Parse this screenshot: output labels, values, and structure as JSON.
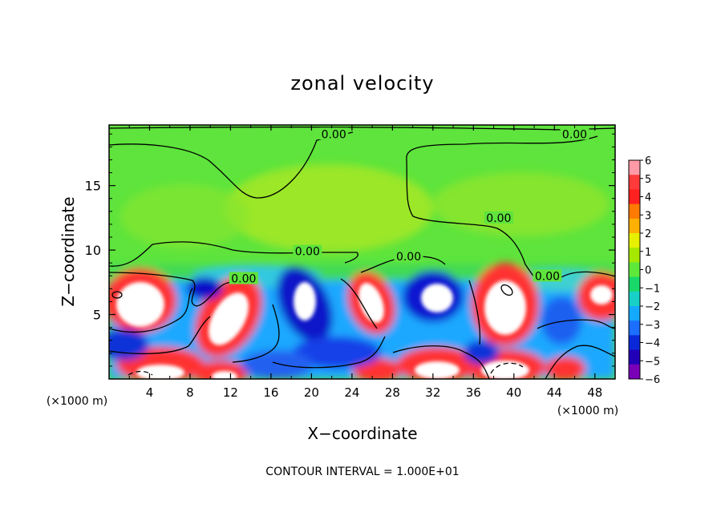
{
  "chart_data": {
    "type": "heatmap",
    "title": "zonal velocity",
    "xlabel": "X−coordinate",
    "ylabel": "Z−coordinate",
    "x_unit_left": "(×1000 m)",
    "x_unit_right": "(×1000 m)",
    "footer": "CONTOUR INTERVAL = 1.000E+01",
    "xlim": [
      0,
      50
    ],
    "ylim": [
      0,
      19.7
    ],
    "x_ticks": [
      4,
      8,
      12,
      16,
      20,
      24,
      28,
      32,
      36,
      40,
      44,
      48
    ],
    "x_tick_labels": [
      "4",
      "8",
      "12",
      "16",
      "20",
      "24",
      "28",
      "32",
      "36",
      "40",
      "44",
      "48"
    ],
    "y_ticks": [
      5,
      10,
      15
    ],
    "y_tick_labels": [
      "5",
      "10",
      "15"
    ],
    "colorbar": {
      "min": -6,
      "max": 6,
      "tick_labels": [
        "6",
        "5",
        "4",
        "3",
        "2",
        "1",
        "0",
        "−1",
        "−2",
        "−3",
        "−4",
        "−5",
        "−6"
      ],
      "colors": [
        "#ff9aa6",
        "#ff3a3a",
        "#ff2020",
        "#ff7a00",
        "#ffb000",
        "#e6f000",
        "#a6e800",
        "#5ee83a",
        "#18d86a",
        "#18d0c8",
        "#14a8ff",
        "#1c6eff",
        "#0a28d8",
        "#2200b8",
        "#7a00b8"
      ]
    },
    "contour_labels": [
      {
        "text": "0.00",
        "x": 22.2,
        "z": 19.0
      },
      {
        "text": "0.00",
        "x": 46.0,
        "z": 19.0
      },
      {
        "text": "0.00",
        "x": 38.5,
        "z": 12.5
      },
      {
        "text": "0.00",
        "x": 19.6,
        "z": 9.9
      },
      {
        "text": "0.00",
        "x": 29.6,
        "z": 9.5
      },
      {
        "text": "0.00",
        "x": 13.3,
        "z": 7.8
      },
      {
        "text": "0.00",
        "x": 43.3,
        "z": 8.0
      }
    ]
  }
}
